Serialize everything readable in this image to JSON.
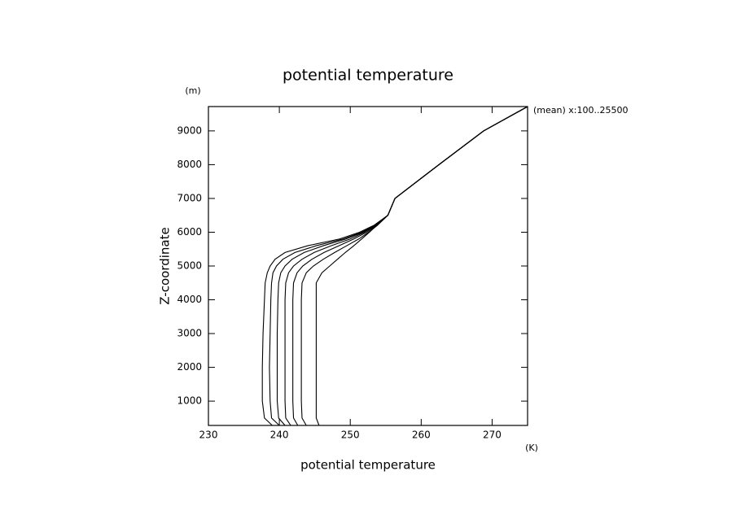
{
  "chart_data": {
    "type": "line",
    "title": "potential temperature",
    "x_label": "potential temperature",
    "y_label": "Z-coordinate",
    "x_unit": "(K)",
    "y_unit": "(m)",
    "annotation": "(mean) x:100..25500",
    "xlim": [
      230,
      275
    ],
    "ylim": [
      280,
      9720
    ],
    "xticks": [
      230,
      240,
      250,
      260,
      270
    ],
    "yticks": [
      1000,
      2000,
      3000,
      4000,
      5000,
      6000,
      7000,
      8000,
      9000
    ],
    "y": [
      280,
      500,
      1000,
      2000,
      3000,
      4000,
      4500,
      4800,
      5000,
      5200,
      5400,
      5600,
      5800,
      6000,
      6200,
      6500,
      7000,
      8000,
      9000,
      9720
    ],
    "series": [
      {
        "color": "#000000",
        "values": [
          245.6,
          245.2,
          245.2,
          245.2,
          245.2,
          245.2,
          245.2,
          246.0,
          247.1,
          248.2,
          249.3,
          250.5,
          251.6,
          252.7,
          253.7,
          255.3,
          256.3,
          262.5,
          268.8,
          275.0
        ]
      },
      {
        "color": "#000000",
        "values": [
          243.8,
          243.2,
          243.1,
          243.1,
          243.1,
          243.1,
          243.2,
          243.8,
          244.8,
          246.2,
          247.8,
          249.5,
          251.2,
          252.6,
          253.8,
          255.3,
          256.3,
          262.5,
          268.8,
          275.0
        ]
      },
      {
        "color": "#000000",
        "values": [
          242.6,
          242.0,
          241.9,
          241.9,
          241.9,
          241.9,
          242.0,
          242.5,
          243.3,
          244.6,
          246.3,
          248.4,
          250.5,
          252.3,
          253.7,
          255.3,
          256.3,
          262.5,
          268.8,
          275.0
        ]
      },
      {
        "color": "#000000",
        "values": [
          241.6,
          240.9,
          240.8,
          240.8,
          240.8,
          240.8,
          240.9,
          241.3,
          242.0,
          243.2,
          244.9,
          247.3,
          250.0,
          252.0,
          253.6,
          255.3,
          256.3,
          262.5,
          268.8,
          275.0
        ]
      },
      {
        "color": "#000000",
        "values": [
          240.8,
          239.9,
          239.7,
          239.7,
          239.7,
          239.8,
          239.9,
          240.2,
          240.8,
          241.8,
          243.5,
          246.2,
          249.4,
          251.8,
          253.5,
          255.3,
          256.3,
          262.5,
          268.8,
          275.0
        ]
      },
      {
        "color": "#000000",
        "values": [
          240.0,
          238.9,
          238.7,
          238.6,
          238.7,
          238.8,
          238.9,
          239.1,
          239.6,
          240.5,
          242.2,
          245.2,
          249.0,
          251.6,
          253.4,
          255.3,
          256.3,
          262.5,
          268.8,
          275.0
        ]
      },
      {
        "color": "#000000",
        "values": [
          239.0,
          237.9,
          237.6,
          237.6,
          237.7,
          237.9,
          238.0,
          238.3,
          238.7,
          239.4,
          240.8,
          244.0,
          248.5,
          251.3,
          253.3,
          255.3,
          256.3,
          262.5,
          268.8,
          275.0
        ]
      }
    ]
  }
}
